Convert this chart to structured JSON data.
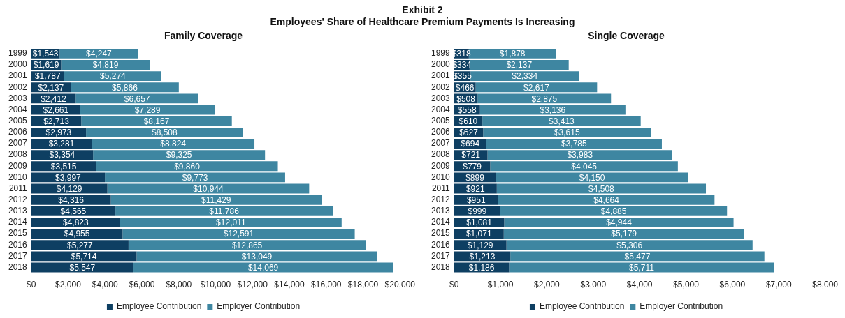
{
  "chart_data": [
    {
      "type": "other",
      "title": "Exhibit 2",
      "subtitle": "Employees' Share of Healthcare Premium Payments Is Increasing"
    },
    {
      "type": "bar",
      "orientation": "horizontal",
      "stacked": true,
      "title": "Family Coverage",
      "categories": [
        "1999",
        "2000",
        "2001",
        "2002",
        "2003",
        "2004",
        "2005",
        "2006",
        "2007",
        "2008",
        "2009",
        "2010",
        "2011",
        "2012",
        "2013",
        "2014",
        "2015",
        "2016",
        "2017",
        "2018"
      ],
      "series": [
        {
          "name": "Employee Contribution",
          "color": "#0e3f62",
          "values": [
            1543,
            1619,
            1787,
            2137,
            2412,
            2661,
            2713,
            2973,
            3281,
            3354,
            3515,
            3997,
            4129,
            4316,
            4565,
            4823,
            4955,
            5277,
            5714,
            5547
          ],
          "value_labels": [
            "$1,543",
            "$1,619",
            "$1,787",
            "$2,137",
            "$2,412",
            "$2,661",
            "$2,713",
            "$2,973",
            "$3,281",
            "$3,354",
            "$3,515",
            "$3,997",
            "$4,129",
            "$4,316",
            "$4,565",
            "$4,823",
            "$4,955",
            "$5,277",
            "$5,714",
            "$5,547"
          ]
        },
        {
          "name": "Employer Contribution",
          "color": "#3e86a1",
          "values": [
            4247,
            4819,
            5274,
            5866,
            6657,
            7289,
            8167,
            8508,
            8824,
            9325,
            9860,
            9773,
            10944,
            11429,
            11786,
            12011,
            12591,
            12865,
            13049,
            14069
          ],
          "value_labels": [
            "$4,247",
            "$4,819",
            "$5,274",
            "$5,866",
            "$6,657",
            "$7,289",
            "$8,167",
            "$8,508",
            "$8,824",
            "$9,325",
            "$9,860",
            "$9,773",
            "$10,944",
            "$11,429",
            "$11,786",
            "$12,011",
            "$12,591",
            "$12,865",
            "$13,049",
            "$14,069"
          ]
        }
      ],
      "xlim": [
        0,
        20000
      ],
      "xticks": [
        {
          "value": 0,
          "label": "$0"
        },
        {
          "value": 2000,
          "label": "$2,000"
        },
        {
          "value": 4000,
          "label": "$4,000"
        },
        {
          "value": 6000,
          "label": "$6,000"
        },
        {
          "value": 8000,
          "label": "$8,000"
        },
        {
          "value": 10000,
          "label": "$10,000"
        },
        {
          "value": 12000,
          "label": "$12,000"
        },
        {
          "value": 14000,
          "label": "$14,000"
        },
        {
          "value": 16000,
          "label": "$16,000"
        },
        {
          "value": 18000,
          "label": "$18,000"
        },
        {
          "value": 20000,
          "label": "$20,000"
        }
      ],
      "grid": false,
      "legend": "bottom"
    },
    {
      "type": "bar",
      "orientation": "horizontal",
      "stacked": true,
      "title": "Single Coverage",
      "categories": [
        "1999",
        "2000",
        "2001",
        "2002",
        "2003",
        "2004",
        "2005",
        "2006",
        "2007",
        "2008",
        "2009",
        "2010",
        "2011",
        "2012",
        "2013",
        "2014",
        "2015",
        "2016",
        "2017",
        "2018"
      ],
      "series": [
        {
          "name": "Employee Contribution",
          "color": "#0e3f62",
          "values": [
            318,
            334,
            355,
            466,
            508,
            558,
            610,
            627,
            694,
            721,
            779,
            899,
            921,
            951,
            999,
            1081,
            1071,
            1129,
            1213,
            1186
          ],
          "value_labels": [
            "$318",
            "$334",
            "$355",
            "$466",
            "$508",
            "$558",
            "$610",
            "$627",
            "$694",
            "$721",
            "$779",
            "$899",
            "$921",
            "$951",
            "$999",
            "$1,081",
            "$1,071",
            "$1,129",
            "$1,213",
            "$1,186"
          ]
        },
        {
          "name": "Employer Contribution",
          "color": "#3e86a1",
          "values": [
            1878,
            2137,
            2334,
            2617,
            2875,
            3136,
            3413,
            3615,
            3785,
            3983,
            4045,
            4150,
            4508,
            4664,
            4885,
            4944,
            5179,
            5306,
            5477,
            5711
          ],
          "value_labels": [
            "$1,878",
            "$2,137",
            "$2,334",
            "$2,617",
            "$2,875",
            "$3,136",
            "$3,413",
            "$3,615",
            "$3,785",
            "$3,983",
            "$4,045",
            "$4,150",
            "$4,508",
            "$4,664",
            "$4,885",
            "$4,944",
            "$5,179",
            "$5,306",
            "$5,477",
            "$5,711"
          ]
        }
      ],
      "xlim": [
        0,
        8000
      ],
      "xticks": [
        {
          "value": 0,
          "label": "$0"
        },
        {
          "value": 1000,
          "label": "$1,000"
        },
        {
          "value": 2000,
          "label": "$2,000"
        },
        {
          "value": 3000,
          "label": "$3,000"
        },
        {
          "value": 4000,
          "label": "$4,000"
        },
        {
          "value": 5000,
          "label": "$5,000"
        },
        {
          "value": 6000,
          "label": "$6,000"
        },
        {
          "value": 7000,
          "label": "$7,000"
        },
        {
          "value": 8000,
          "label": "$8,000"
        }
      ],
      "grid": false,
      "legend": "bottom"
    }
  ]
}
